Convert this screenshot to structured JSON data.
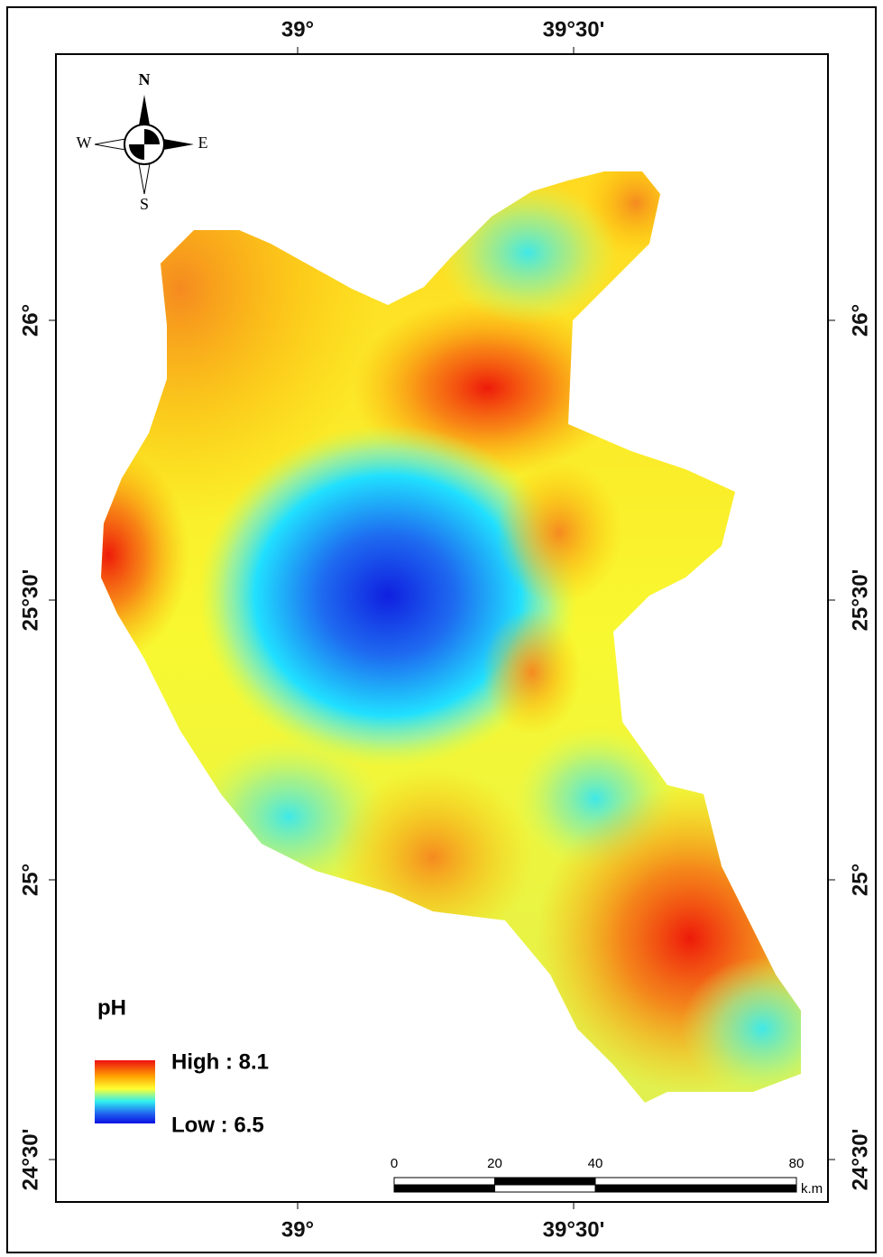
{
  "map": {
    "lon_ticks": [
      {
        "value": 39,
        "label": "39°"
      },
      {
        "value": 39.5,
        "label": "39°30'"
      }
    ],
    "lat_ticks": [
      {
        "value": 26,
        "label": "26°"
      },
      {
        "value": 25.5,
        "label": "25°30'"
      },
      {
        "value": 25,
        "label": "25°"
      },
      {
        "value": 24.5,
        "label": "24°30'"
      }
    ],
    "compass": {
      "north": "N",
      "south": "S",
      "east": "E",
      "west": "W"
    },
    "legend": {
      "title": "pH",
      "high": "High : 8.1",
      "low": "Low : 6.5"
    },
    "scale_bar": {
      "ticks": [
        0,
        20,
        40,
        80
      ],
      "unit": "k.m"
    }
  }
}
